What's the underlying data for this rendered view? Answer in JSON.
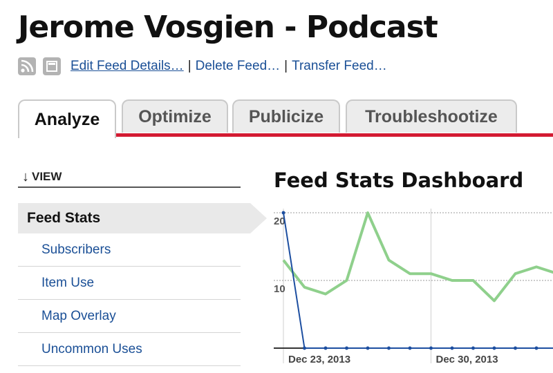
{
  "page": {
    "title": "Jerome Vosgien - Podcast"
  },
  "feed_actions": {
    "icons": [
      "rss-feed-icon",
      "feed-page-icon"
    ],
    "edit": "Edit Feed Details…",
    "delete": "Delete Feed…",
    "transfer": "Transfer Feed…",
    "separator": "|"
  },
  "tabs": [
    {
      "label": "Analyze",
      "active": true
    },
    {
      "label": "Optimize",
      "active": false
    },
    {
      "label": "Publicize",
      "active": false
    },
    {
      "label": "Troubleshootize",
      "active": false
    }
  ],
  "sidebar": {
    "view_arrow": "↓",
    "view_label": "VIEW",
    "selected": "Feed Stats",
    "items": [
      {
        "label": "Subscribers"
      },
      {
        "label": "Item Use"
      },
      {
        "label": "Map Overlay"
      },
      {
        "label": "Uncommon Uses"
      }
    ]
  },
  "dashboard": {
    "title": "Feed Stats Dashboard"
  },
  "colors": {
    "accent_red": "#d31a32",
    "link_blue": "#1a4f96",
    "subscribers_line": "#1c4ea0",
    "views_line": "#8fd08c"
  },
  "chart_data": {
    "type": "line",
    "y_ticks": [
      10,
      20
    ],
    "ylim": [
      0,
      21
    ],
    "x_labels": [
      "Dec 23, 2013",
      "Dec 30, 2013"
    ],
    "x_label_index": [
      0,
      7
    ],
    "grid": true,
    "series": [
      {
        "color": "#1c4ea0",
        "values": [
          20,
          0,
          0,
          0,
          0,
          0,
          0,
          0,
          0,
          0,
          0,
          0,
          0,
          0
        ]
      },
      {
        "color": "#8fd08c",
        "values": [
          13,
          9,
          8,
          10,
          20,
          13,
          11,
          11,
          10,
          10,
          7,
          11,
          12,
          11
        ]
      }
    ]
  }
}
